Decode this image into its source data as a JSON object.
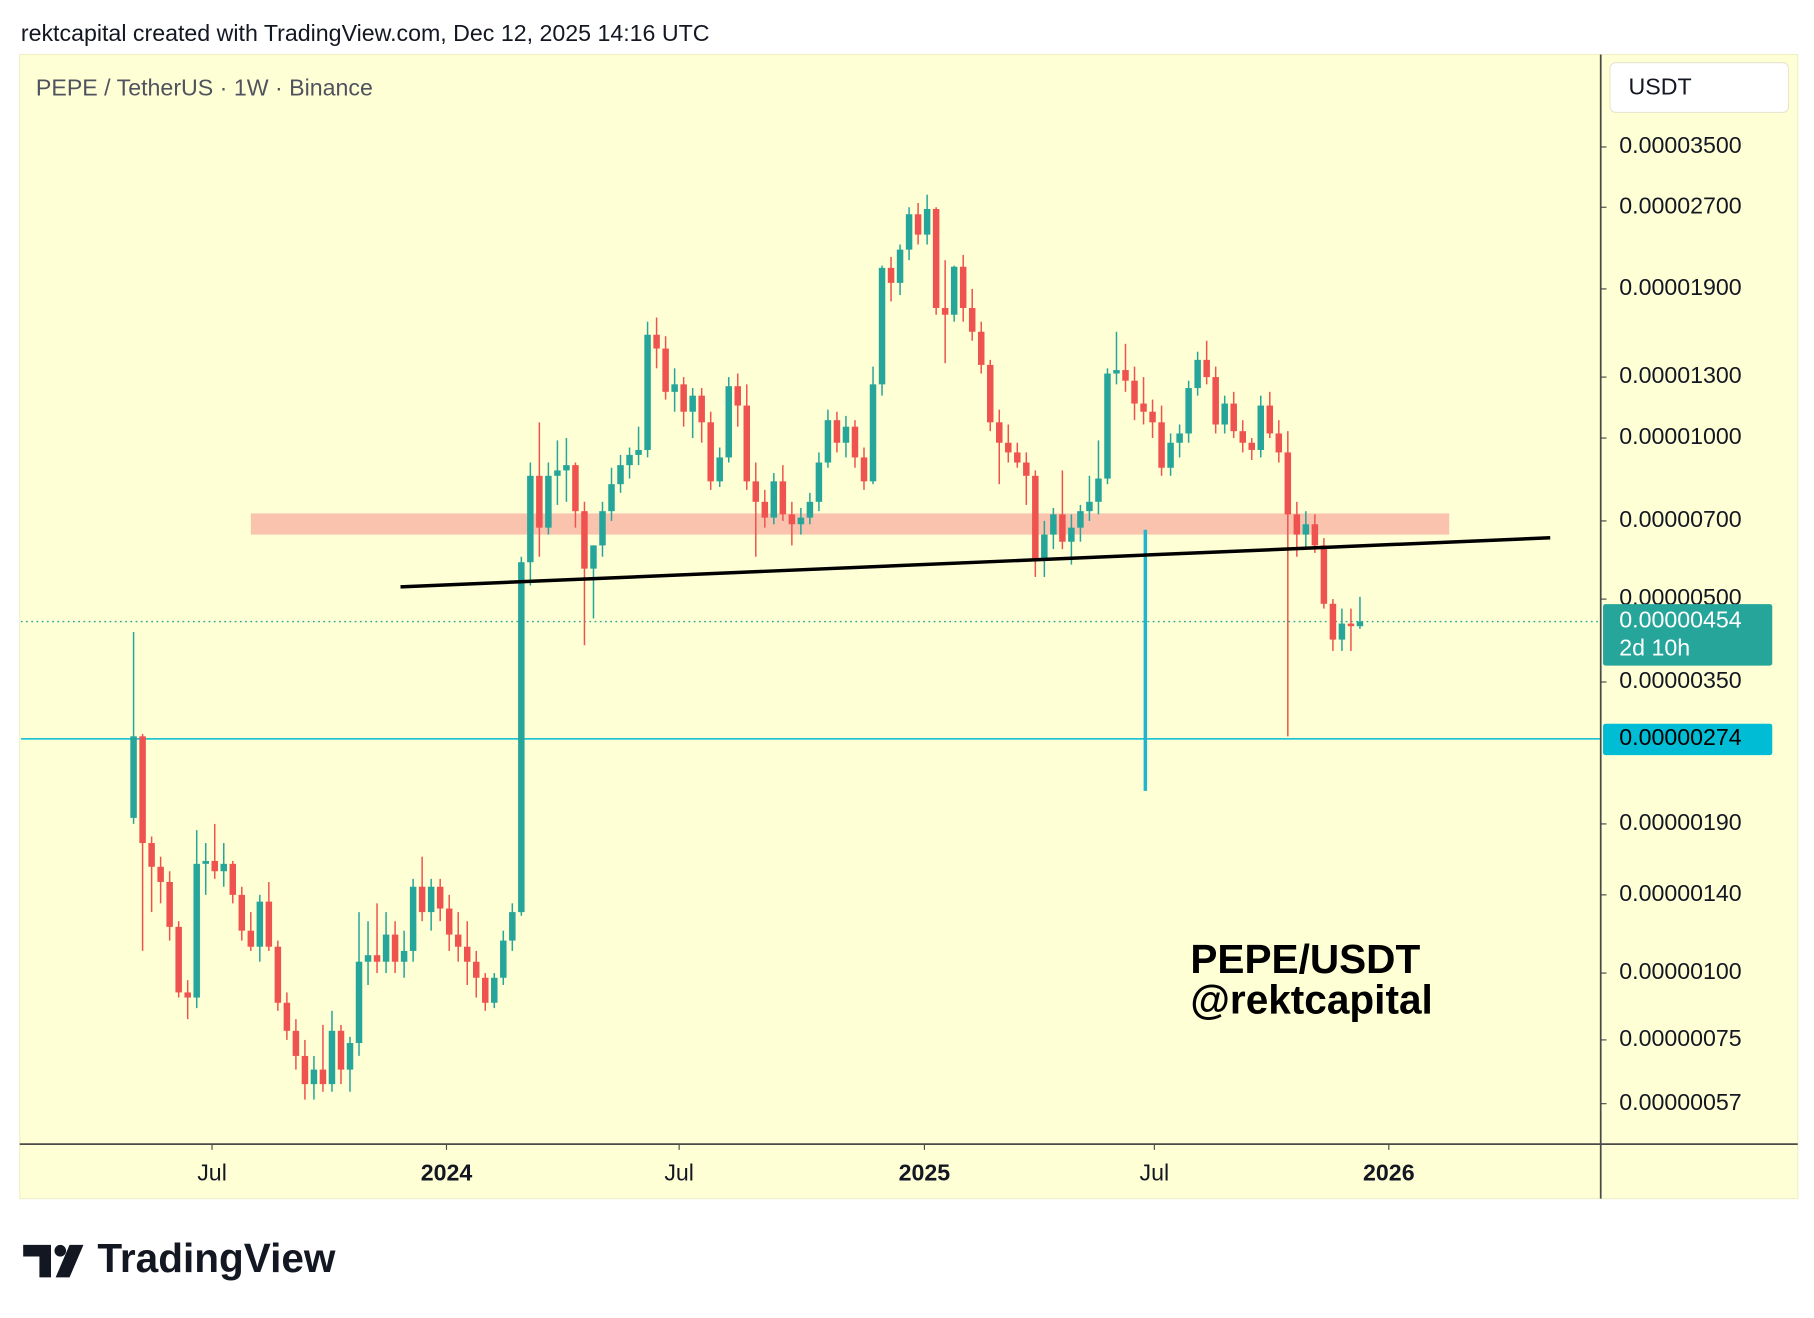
{
  "chart_data": {
    "type": "candlestick",
    "header": "rektcapital created with TradingView.com, Dec 12, 2025 14:16 UTC",
    "title": "PEPE / TetherUS · 1W · Binance",
    "currency": "USDT",
    "up_color": "#26a69a",
    "down_color": "#ef5350",
    "log_scale": true,
    "grid": false,
    "ylim": [
      4.79e-07,
      5.21e-05
    ],
    "yticks": [
      {
        "value": 3.5e-05,
        "label": "0.00003500"
      },
      {
        "value": 2.7e-05,
        "label": "0.00002700"
      },
      {
        "value": 1.9e-05,
        "label": "0.00001900"
      },
      {
        "value": 1.3e-05,
        "label": "0.00001300"
      },
      {
        "value": 1e-05,
        "label": "0.00001000"
      },
      {
        "value": 7e-06,
        "label": "0.00000700"
      },
      {
        "value": 5e-06,
        "label": "0.00000500"
      },
      {
        "value": 3.5e-06,
        "label": "0.00000350"
      },
      {
        "value": 1.9e-06,
        "label": "0.00000190"
      },
      {
        "value": 1.4e-06,
        "label": "0.00000140"
      },
      {
        "value": 1e-06,
        "label": "0.00000100"
      },
      {
        "value": 7.5e-07,
        "label": "0.00000075"
      },
      {
        "value": 5.7e-07,
        "label": "0.00000057"
      }
    ],
    "xlim": [
      -12.5,
      162.7
    ],
    "xticks": [
      {
        "value": 8.7,
        "label": "Jul"
      },
      {
        "value": 34.7,
        "label": "2024"
      },
      {
        "value": 60.5,
        "label": "Jul"
      },
      {
        "value": 87.7,
        "label": "2025"
      },
      {
        "value": 113.2,
        "label": "Jul"
      },
      {
        "value": 139.2,
        "label": "2026"
      }
    ],
    "candles": [
      [
        1.95e-06,
        4.34e-06,
        1.9e-06,
        2.77e-06
      ],
      [
        2.77e-06,
        2.8e-06,
        1.1e-06,
        1.75e-06
      ],
      [
        1.75e-06,
        1.8e-06,
        1.3e-06,
        1.58e-06
      ],
      [
        1.58e-06,
        1.65e-06,
        1.35e-06,
        1.48e-06
      ],
      [
        1.48e-06,
        1.55e-06,
        1.15e-06,
        1.22e-06
      ],
      [
        1.22e-06,
        1.25e-06,
        9e-07,
        9.2e-07
      ],
      [
        9.2e-07,
        9.7e-07,
        8.2e-07,
        9e-07
      ],
      [
        9e-07,
        1.85e-06,
        8.6e-07,
        1.6e-06
      ],
      [
        1.6e-06,
        1.75e-06,
        1.4e-06,
        1.62e-06
      ],
      [
        1.62e-06,
        1.9e-06,
        1.5e-06,
        1.55e-06
      ],
      [
        1.55e-06,
        1.75e-06,
        1.45e-06,
        1.6e-06
      ],
      [
        1.6e-06,
        1.62e-06,
        1.35e-06,
        1.4e-06
      ],
      [
        1.4e-06,
        1.45e-06,
        1.15e-06,
        1.2e-06
      ],
      [
        1.2e-06,
        1.3e-06,
        1.1e-06,
        1.12e-06
      ],
      [
        1.12e-06,
        1.4e-06,
        1.05e-06,
        1.36e-06
      ],
      [
        1.36e-06,
        1.48e-06,
        1.1e-06,
        1.12e-06
      ],
      [
        1.12e-06,
        1.15e-06,
        8.5e-07,
        8.8e-07
      ],
      [
        8.8e-07,
        9.2e-07,
        7.5e-07,
        7.8e-07
      ],
      [
        7.8e-07,
        8.2e-07,
        6.6e-07,
        7e-07
      ],
      [
        7e-07,
        7.5e-07,
        5.8e-07,
        6.2e-07
      ],
      [
        6.2e-07,
        7e-07,
        5.8e-07,
        6.6e-07
      ],
      [
        6.6e-07,
        8e-07,
        6e-07,
        6.2e-07
      ],
      [
        6.2e-07,
        8.5e-07,
        6e-07,
        7.8e-07
      ],
      [
        7.8e-07,
        8e-07,
        6.2e-07,
        6.6e-07
      ],
      [
        6.6e-07,
        7.6e-07,
        6e-07,
        7.4e-07
      ],
      [
        7.4e-07,
        1.3e-06,
        7e-07,
        1.05e-06
      ],
      [
        1.05e-06,
        1.25e-06,
        9.5e-07,
        1.08e-06
      ],
      [
        1.08e-06,
        1.35e-06,
        1e-06,
        1.05e-06
      ],
      [
        1.05e-06,
        1.3e-06,
        1e-06,
        1.18e-06
      ],
      [
        1.18e-06,
        1.25e-06,
        1e-06,
        1.05e-06
      ],
      [
        1.05e-06,
        1.2e-06,
        9.8e-07,
        1.1e-06
      ],
      [
        1.1e-06,
        1.5e-06,
        1.05e-06,
        1.45e-06
      ],
      [
        1.45e-06,
        1.65e-06,
        1.25e-06,
        1.3e-06
      ],
      [
        1.3e-06,
        1.5e-06,
        1.2e-06,
        1.45e-06
      ],
      [
        1.45e-06,
        1.5e-06,
        1.25e-06,
        1.32e-06
      ],
      [
        1.32e-06,
        1.4e-06,
        1.1e-06,
        1.18e-06
      ],
      [
        1.18e-06,
        1.3e-06,
        1.05e-06,
        1.12e-06
      ],
      [
        1.12e-06,
        1.25e-06,
        9.5e-07,
        1.05e-06
      ],
      [
        1.05e-06,
        1.1e-06,
        9e-07,
        9.8e-07
      ],
      [
        9.8e-07,
        1e-06,
        8.5e-07,
        8.8e-07
      ],
      [
        8.8e-07,
        1e-06,
        8.6e-07,
        9.8e-07
      ],
      [
        9.8e-07,
        1.2e-06,
        9.5e-07,
        1.15e-06
      ],
      [
        1.15e-06,
        1.35e-06,
        1.1e-06,
        1.3e-06
      ],
      [
        1.3e-06,
        6e-06,
        1.28e-06,
        5.86e-06
      ],
      [
        5.86e-06,
        9e-06,
        5.3e-06,
        8.5e-06
      ],
      [
        8.5e-06,
        1.07e-05,
        6e-06,
        6.8e-06
      ],
      [
        6.8e-06,
        9e-06,
        6.6e-06,
        8.5e-06
      ],
      [
        8.5e-06,
        9.9e-06,
        7.5e-06,
        8.7e-06
      ],
      [
        8.7e-06,
        1e-05,
        7.6e-06,
        8.9e-06
      ],
      [
        8.9e-06,
        9e-06,
        6.8e-06,
        7.3e-06
      ],
      [
        7.3e-06,
        7.6e-06,
        4.1e-06,
        5.7e-06
      ],
      [
        5.7e-06,
        6.3e-06,
        4.6e-06,
        6.3e-06
      ],
      [
        6.3e-06,
        7.6e-06,
        6e-06,
        7.3e-06
      ],
      [
        7.3e-06,
        8.8e-06,
        7e-06,
        8.2e-06
      ],
      [
        8.2e-06,
        9.3e-06,
        7.9e-06,
        8.9e-06
      ],
      [
        8.9e-06,
        9.6e-06,
        8.4e-06,
        9.3e-06
      ],
      [
        9.3e-06,
        1.05e-05,
        8.9e-06,
        9.5e-06
      ],
      [
        9.5e-06,
        1.65e-05,
        9.2e-06,
        1.56e-05
      ],
      [
        1.56e-05,
        1.68e-05,
        1.35e-05,
        1.47e-05
      ],
      [
        1.47e-05,
        1.55e-05,
        1.18e-05,
        1.22e-05
      ],
      [
        1.22e-05,
        1.35e-05,
        1.12e-05,
        1.26e-05
      ],
      [
        1.26e-05,
        1.3e-05,
        1.05e-05,
        1.12e-05
      ],
      [
        1.12e-05,
        1.24e-05,
        1e-05,
        1.2e-05
      ],
      [
        1.2e-05,
        1.24e-05,
        9.8e-06,
        1.07e-05
      ],
      [
        1.07e-05,
        1.12e-05,
        8e-06,
        8.3e-06
      ],
      [
        8.3e-06,
        9.6e-06,
        8.1e-06,
        9.2e-06
      ],
      [
        9.2e-06,
        1.3e-05,
        9e-06,
        1.25e-05
      ],
      [
        1.25e-05,
        1.32e-05,
        1.05e-05,
        1.15e-05
      ],
      [
        1.15e-05,
        1.26e-05,
        8e-06,
        8.3e-06
      ],
      [
        8.3e-06,
        9e-06,
        6e-06,
        7.6e-06
      ],
      [
        7.6e-06,
        8e-06,
        6.8e-06,
        7.1e-06
      ],
      [
        7.1e-06,
        8.6e-06,
        6.9e-06,
        8.3e-06
      ],
      [
        8.3e-06,
        8.9e-06,
        7e-06,
        7.2e-06
      ],
      [
        7.2e-06,
        7.6e-06,
        6.3e-06,
        6.9e-06
      ],
      [
        6.9e-06,
        7.4e-06,
        6.6e-06,
        7.1e-06
      ],
      [
        7.1e-06,
        7.9e-06,
        6.9e-06,
        7.6e-06
      ],
      [
        7.6e-06,
        9.4e-06,
        7.3e-06,
        9e-06
      ],
      [
        9e-06,
        1.13e-05,
        8.8e-06,
        1.08e-05
      ],
      [
        1.08e-05,
        1.12e-05,
        9.4e-06,
        9.8e-06
      ],
      [
        9.8e-06,
        1.1e-05,
        9.2e-06,
        1.05e-05
      ],
      [
        1.05e-05,
        1.08e-05,
        8.8e-06,
        9.2e-06
      ],
      [
        9.2e-06,
        9.6e-06,
        8e-06,
        8.3e-06
      ],
      [
        8.3e-06,
        1.36e-05,
        8.2e-06,
        1.26e-05
      ],
      [
        1.26e-05,
        2.1e-05,
        1.2e-05,
        2.08e-05
      ],
      [
        2.08e-05,
        2.18e-05,
        1.8e-05,
        1.95e-05
      ],
      [
        1.95e-05,
        2.3e-05,
        1.85e-05,
        2.25e-05
      ],
      [
        2.25e-05,
        2.7e-05,
        2.15e-05,
        2.62e-05
      ],
      [
        2.62e-05,
        2.75e-05,
        2.3e-05,
        2.4e-05
      ],
      [
        2.4e-05,
        2.85e-05,
        2.3e-05,
        2.68e-05
      ],
      [
        2.68e-05,
        2.7e-05,
        1.7e-05,
        1.75e-05
      ],
      [
        1.75e-05,
        2.15e-05,
        1.38e-05,
        1.7e-05
      ],
      [
        1.7e-05,
        2.1e-05,
        1.65e-05,
        2.09e-05
      ],
      [
        2.09e-05,
        2.2e-05,
        1.65e-05,
        1.75e-05
      ],
      [
        1.75e-05,
        1.9e-05,
        1.52e-05,
        1.58e-05
      ],
      [
        1.58e-05,
        1.65e-05,
        1.32e-05,
        1.37e-05
      ],
      [
        1.37e-05,
        1.4e-05,
        1.03e-05,
        1.07e-05
      ],
      [
        1.07e-05,
        1.13e-05,
        8.2e-06,
        9.8e-06
      ],
      [
        9.8e-06,
        1.06e-05,
        9e-06,
        9.4e-06
      ],
      [
        9.4e-06,
        9.8e-06,
        8.8e-06,
        9e-06
      ],
      [
        9e-06,
        9.4e-06,
        7.5e-06,
        8.5e-06
      ],
      [
        8.5e-06,
        8.7e-06,
        5.5e-06,
        5.9e-06
      ],
      [
        5.9e-06,
        7e-06,
        5.5e-06,
        6.6e-06
      ],
      [
        6.6e-06,
        7.4e-06,
        6.2e-06,
        7.2e-06
      ],
      [
        7.2e-06,
        8.7e-06,
        6.2e-06,
        6.4e-06
      ],
      [
        6.4e-06,
        7.2e-06,
        5.8e-06,
        6.8e-06
      ],
      [
        6.8e-06,
        7.5e-06,
        6.4e-06,
        7.3e-06
      ],
      [
        7.3e-06,
        8.5e-06,
        7e-06,
        7.6e-06
      ],
      [
        7.6e-06,
        9.9e-06,
        7.2e-06,
        8.4e-06
      ],
      [
        8.4e-06,
        1.35e-05,
        8.2e-06,
        1.32e-05
      ],
      [
        1.32e-05,
        1.58e-05,
        1.26e-05,
        1.34e-05
      ],
      [
        1.34e-05,
        1.5e-05,
        1.22e-05,
        1.28e-05
      ],
      [
        1.28e-05,
        1.36e-05,
        1.08e-05,
        1.16e-05
      ],
      [
        1.16e-05,
        1.3e-05,
        1.06e-05,
        1.12e-05
      ],
      [
        1.12e-05,
        1.18e-05,
        1e-05,
        1.07e-05
      ],
      [
        1.07e-05,
        1.15e-05,
        8.5e-06,
        8.8e-06
      ],
      [
        8.8e-06,
        1.02e-05,
        8.5e-06,
        9.8e-06
      ],
      [
        9.8e-06,
        1.06e-05,
        9.2e-06,
        1.02e-05
      ],
      [
        1.02e-05,
        1.28e-05,
        9.8e-06,
        1.24e-05
      ],
      [
        1.24e-05,
        1.45e-05,
        1.2e-05,
        1.4e-05
      ],
      [
        1.4e-05,
        1.52e-05,
        1.26e-05,
        1.3e-05
      ],
      [
        1.3e-05,
        1.36e-05,
        1.02e-05,
        1.06e-05
      ],
      [
        1.06e-05,
        1.2e-05,
        1.02e-05,
        1.16e-05
      ],
      [
        1.16e-05,
        1.22e-05,
        1e-05,
        1.03e-05
      ],
      [
        1.03e-05,
        1.08e-05,
        9.4e-06,
        9.8e-06
      ],
      [
        9.8e-06,
        1e-05,
        9.1e-06,
        9.5e-06
      ],
      [
        9.5e-06,
        1.2e-05,
        9.2e-06,
        1.15e-05
      ],
      [
        1.15e-05,
        1.22e-05,
        1e-05,
        1.02e-05
      ],
      [
        1.02e-05,
        1.08e-05,
        9e-06,
        9.4e-06
      ],
      [
        9.4e-06,
        1.03e-05,
        2.77e-06,
        7.2e-06
      ],
      [
        7.2e-06,
        7.6e-06,
        6e-06,
        6.6e-06
      ],
      [
        6.6e-06,
        7.3e-06,
        6.2e-06,
        6.9e-06
      ],
      [
        6.9e-06,
        7.2e-06,
        6.1e-06,
        6.3e-06
      ],
      [
        6.3e-06,
        6.5e-06,
        4.8e-06,
        4.9e-06
      ],
      [
        4.9e-06,
        5e-06,
        4e-06,
        4.2e-06
      ],
      [
        4.2e-06,
        4.8e-06,
        4e-06,
        4.5e-06
      ],
      [
        4.5e-06,
        4.8e-06,
        4e-06,
        4.45e-06
      ],
      [
        4.45e-06,
        5.05e-06,
        4.4e-06,
        4.54e-06
      ]
    ],
    "zones": [
      {
        "ylim": [
          6.6e-06,
          7.23e-06
        ],
        "xlim": [
          13,
          145.9
        ],
        "color": "#f8bcaa"
      }
    ],
    "trendlines": [
      {
        "x": [
          29.6,
          157.1
        ],
        "y": [
          5.27e-06,
          6.51e-06
        ],
        "color": "#000000"
      }
    ],
    "vlines": [
      {
        "x": 112.2,
        "y": [
          6.74e-06,
          2.19e-06
        ],
        "color": "#1fb5cf"
      }
    ],
    "hlines": [
      {
        "value": 2.74e-06,
        "label": "0.00000274",
        "color": "#00bcd4"
      }
    ],
    "last_price": {
      "value": 4.54e-06,
      "label": "0.00000454",
      "countdown": "2d 10h",
      "color": "#26a69a"
    },
    "annotation": [
      "PEPE/USDT",
      "@rektcapital"
    ],
    "footer": "TradingView"
  }
}
